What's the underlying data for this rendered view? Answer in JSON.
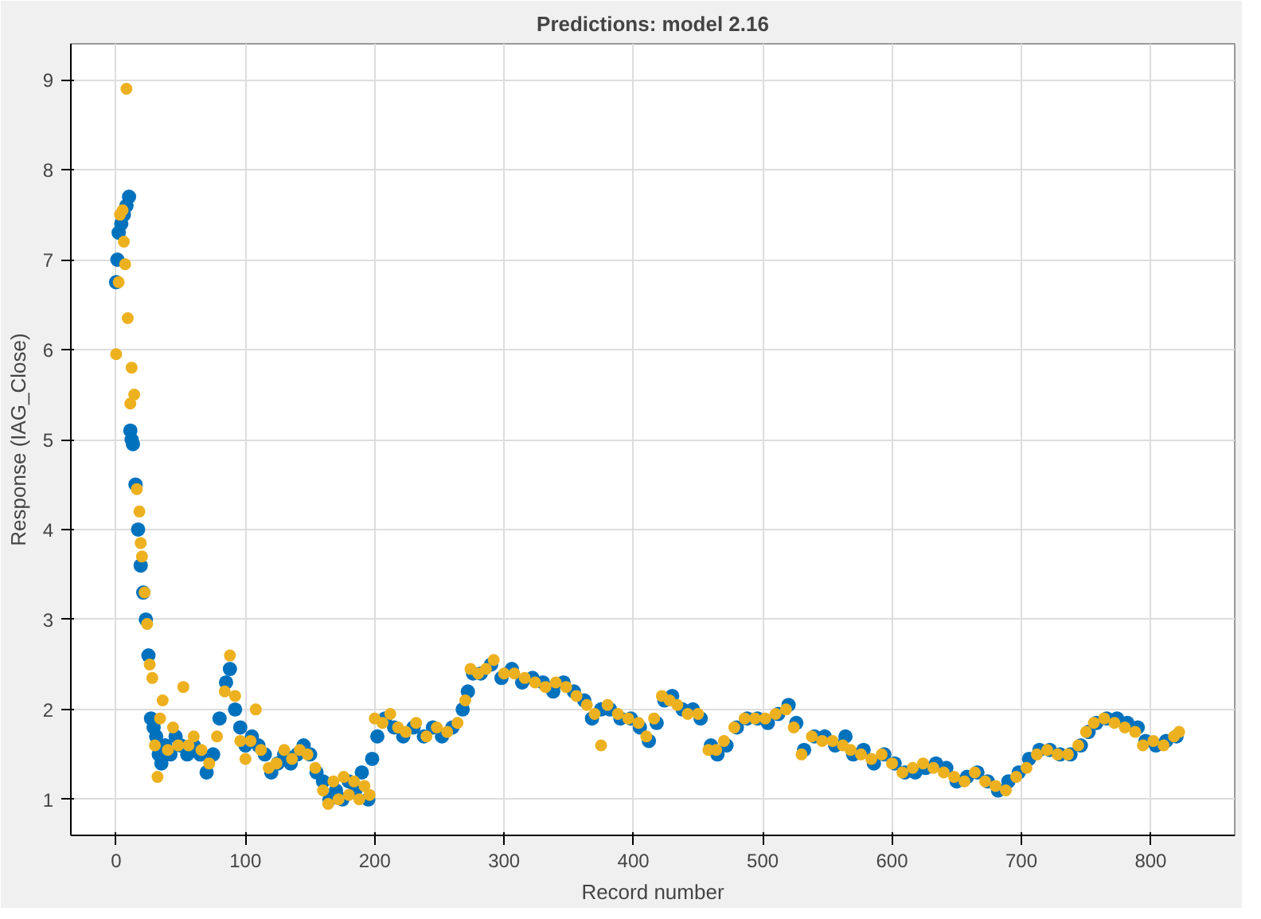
{
  "chart_data": {
    "type": "scatter",
    "title": "Predictions: model 2.16",
    "xlabel": "Record number",
    "ylabel": "Response (IAG_Close)",
    "xlim": [
      -35,
      865
    ],
    "ylim": [
      0.6,
      9.4
    ],
    "xticks": [
      0,
      100,
      200,
      300,
      400,
      500,
      600,
      700,
      800
    ],
    "yticks": [
      1,
      2,
      3,
      4,
      5,
      6,
      7,
      8,
      9
    ],
    "grid": true,
    "marker": "circle",
    "series": [
      {
        "color": "#0072bd",
        "x": [
          0,
          1,
          2,
          4,
          6,
          8,
          10,
          11,
          12,
          13,
          15,
          17,
          19,
          21,
          23,
          25,
          27,
          29,
          31,
          33,
          35,
          38,
          42,
          46,
          50,
          55,
          60,
          65,
          70,
          75,
          80,
          85,
          88,
          92,
          96,
          100,
          105,
          110,
          115,
          120,
          125,
          130,
          135,
          140,
          145,
          150,
          155,
          160,
          165,
          170,
          175,
          180,
          185,
          190,
          195,
          198,
          202,
          208,
          215,
          222,
          230,
          238,
          245,
          252,
          260,
          268,
          272,
          276,
          282,
          290,
          298,
          306,
          314,
          322,
          330,
          338,
          346,
          354,
          362,
          368,
          375,
          382,
          390,
          398,
          405,
          412,
          418,
          424,
          430,
          438,
          446,
          452,
          460,
          465,
          472,
          480,
          488,
          496,
          504,
          512,
          520,
          526,
          532,
          540,
          548,
          556,
          564,
          570,
          578,
          586,
          594,
          602,
          610,
          618,
          626,
          634,
          642,
          650,
          658,
          666,
          674,
          682,
          690,
          698,
          706,
          714,
          722,
          730,
          738,
          746,
          752,
          758,
          766,
          774,
          782,
          790,
          796,
          804,
          812,
          820
        ],
        "values": [
          6.75,
          7.0,
          7.3,
          7.4,
          7.5,
          7.6,
          7.7,
          5.1,
          5.0,
          4.95,
          4.5,
          4.0,
          3.6,
          3.3,
          3.0,
          2.6,
          1.9,
          1.8,
          1.7,
          1.5,
          1.4,
          1.6,
          1.5,
          1.7,
          1.6,
          1.5,
          1.6,
          1.5,
          1.3,
          1.5,
          1.9,
          2.3,
          2.45,
          2.0,
          1.8,
          1.6,
          1.7,
          1.6,
          1.5,
          1.3,
          1.4,
          1.5,
          1.4,
          1.5,
          1.6,
          1.5,
          1.3,
          1.2,
          1.0,
          1.1,
          1.0,
          1.2,
          1.1,
          1.3,
          1.0,
          1.45,
          1.7,
          1.9,
          1.8,
          1.7,
          1.8,
          1.7,
          1.8,
          1.7,
          1.8,
          2.0,
          2.2,
          2.4,
          2.4,
          2.5,
          2.35,
          2.45,
          2.3,
          2.35,
          2.3,
          2.2,
          2.3,
          2.2,
          2.1,
          1.9,
          2.0,
          2.0,
          1.9,
          1.9,
          1.8,
          1.65,
          1.85,
          2.1,
          2.15,
          2.0,
          2.0,
          1.9,
          1.6,
          1.5,
          1.6,
          1.8,
          1.9,
          1.9,
          1.85,
          1.95,
          2.05,
          1.85,
          1.55,
          1.7,
          1.7,
          1.6,
          1.7,
          1.5,
          1.55,
          1.4,
          1.5,
          1.4,
          1.3,
          1.3,
          1.35,
          1.4,
          1.35,
          1.2,
          1.25,
          1.3,
          1.2,
          1.1,
          1.2,
          1.3,
          1.45,
          1.55,
          1.55,
          1.5,
          1.5,
          1.6,
          1.75,
          1.85,
          1.9,
          1.9,
          1.85,
          1.8,
          1.65,
          1.6,
          1.65,
          1.7
        ]
      },
      {
        "color": "#edb120",
        "x": [
          0,
          2,
          3,
          5,
          6,
          7,
          8,
          9,
          11,
          12,
          14,
          16,
          18,
          19,
          20,
          22,
          24,
          26,
          28,
          30,
          32,
          34,
          36,
          40,
          44,
          48,
          52,
          56,
          60,
          66,
          72,
          78,
          84,
          88,
          92,
          96,
          100,
          104,
          108,
          112,
          118,
          124,
          130,
          136,
          142,
          148,
          154,
          160,
          164,
          168,
          172,
          176,
          180,
          184,
          188,
          192,
          196,
          200,
          206,
          212,
          218,
          224,
          232,
          240,
          248,
          256,
          264,
          270,
          274,
          280,
          286,
          292,
          300,
          308,
          316,
          324,
          332,
          340,
          348,
          356,
          364,
          370,
          375,
          380,
          388,
          396,
          404,
          410,
          416,
          422,
          428,
          434,
          442,
          450,
          458,
          464,
          470,
          478,
          486,
          494,
          502,
          510,
          518,
          524,
          530,
          538,
          546,
          554,
          562,
          568,
          576,
          584,
          592,
          600,
          608,
          616,
          624,
          632,
          640,
          648,
          656,
          664,
          672,
          680,
          688,
          696,
          704,
          712,
          720,
          728,
          736,
          744,
          750,
          756,
          764,
          772,
          780,
          788,
          794,
          802,
          810,
          818,
          822
        ],
        "values": [
          5.95,
          6.75,
          7.5,
          7.55,
          7.2,
          6.95,
          8.9,
          6.35,
          5.4,
          5.8,
          5.5,
          4.45,
          4.2,
          3.85,
          3.7,
          3.3,
          2.95,
          2.5,
          2.35,
          1.6,
          1.25,
          1.9,
          2.1,
          1.55,
          1.8,
          1.6,
          2.25,
          1.6,
          1.7,
          1.55,
          1.4,
          1.7,
          2.2,
          2.6,
          2.15,
          1.65,
          1.45,
          1.65,
          2.0,
          1.55,
          1.35,
          1.4,
          1.55,
          1.45,
          1.55,
          1.5,
          1.35,
          1.1,
          0.95,
          1.2,
          1.0,
          1.25,
          1.05,
          1.2,
          1.0,
          1.15,
          1.05,
          1.9,
          1.85,
          1.95,
          1.8,
          1.75,
          1.85,
          1.7,
          1.8,
          1.75,
          1.85,
          2.1,
          2.45,
          2.4,
          2.45,
          2.55,
          2.4,
          2.4,
          2.35,
          2.3,
          2.25,
          2.3,
          2.25,
          2.15,
          2.05,
          1.95,
          1.6,
          2.05,
          1.95,
          1.9,
          1.85,
          1.7,
          1.9,
          2.15,
          2.1,
          2.05,
          1.95,
          1.95,
          1.55,
          1.55,
          1.65,
          1.8,
          1.9,
          1.9,
          1.9,
          1.95,
          2.0,
          1.8,
          1.5,
          1.7,
          1.65,
          1.65,
          1.6,
          1.55,
          1.5,
          1.45,
          1.5,
          1.4,
          1.3,
          1.35,
          1.4,
          1.35,
          1.3,
          1.25,
          1.2,
          1.3,
          1.2,
          1.15,
          1.1,
          1.25,
          1.35,
          1.5,
          1.55,
          1.5,
          1.5,
          1.6,
          1.75,
          1.85,
          1.9,
          1.85,
          1.8,
          1.75,
          1.6,
          1.65,
          1.6,
          1.7,
          1.75
        ]
      }
    ]
  }
}
